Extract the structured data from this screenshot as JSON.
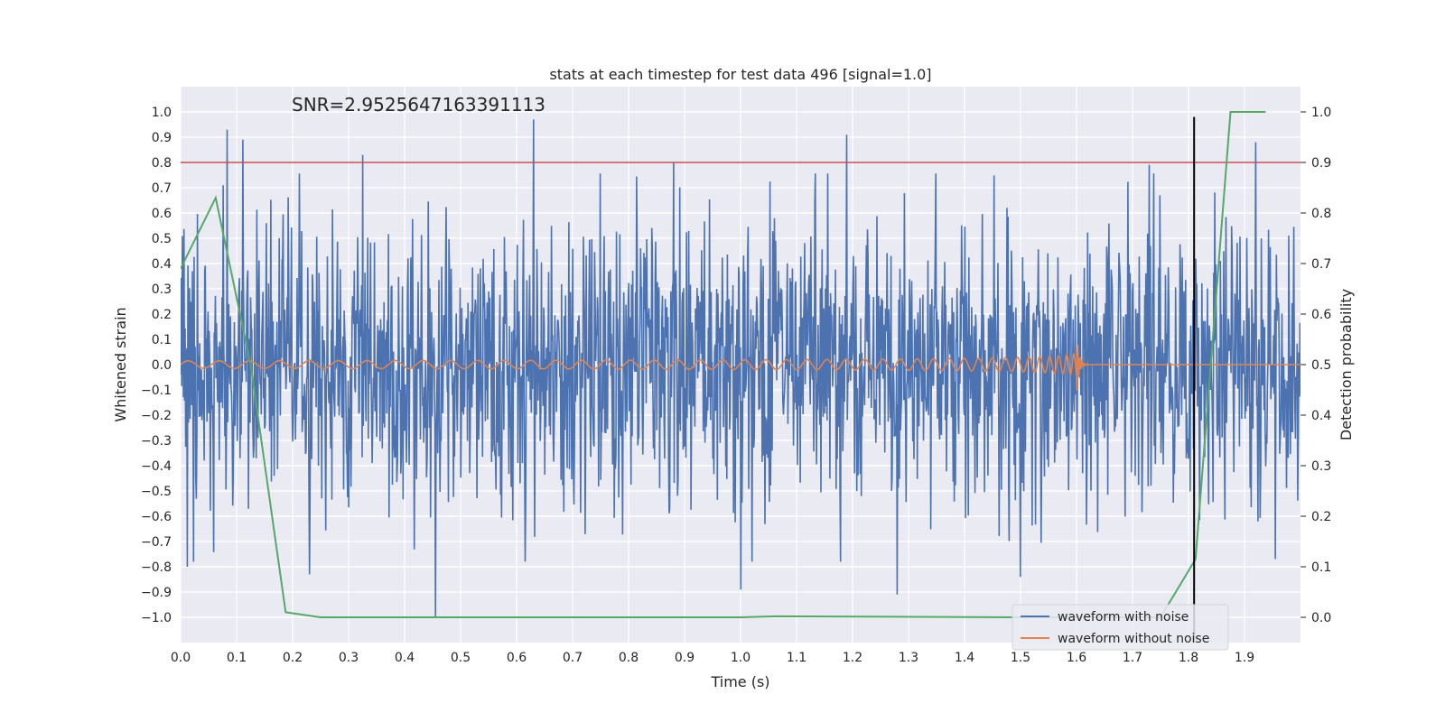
{
  "chart_data": {
    "type": "line",
    "title": "stats at each timestep for test data 496 [signal=1.0]",
    "annotation": "SNR=2.9525647163391113",
    "xlabel": "Time (s)",
    "ylabel_left": "Whitened strain",
    "ylabel_right": "Detection probability",
    "xlim": [
      0.0,
      2.0
    ],
    "ylim_left": [
      -1.1,
      1.1
    ],
    "ylim_right": [
      -0.05,
      1.05
    ],
    "xticks": [
      "0.0",
      "0.1",
      "0.2",
      "0.3",
      "0.4",
      "0.5",
      "0.6",
      "0.7",
      "0.8",
      "0.9",
      "1.0",
      "1.1",
      "1.2",
      "1.3",
      "1.4",
      "1.5",
      "1.6",
      "1.7",
      "1.8",
      "1.9"
    ],
    "yticks_left": [
      "1.0",
      "0.9",
      "0.8",
      "0.7",
      "0.6",
      "0.5",
      "0.4",
      "0.3",
      "0.2",
      "0.1",
      "0.0",
      "−0.1",
      "−0.2",
      "−0.3",
      "−0.4",
      "−0.5",
      "−0.6",
      "−0.7",
      "−0.8",
      "−0.9",
      "−1.0"
    ],
    "yticks_right": [
      "1.0",
      "0.9",
      "0.8",
      "0.7",
      "0.6",
      "0.5",
      "0.4",
      "0.3",
      "0.2",
      "0.1",
      "0.0"
    ],
    "grid": true,
    "legend_position": "lower-right",
    "threshold_line": {
      "axis": "right",
      "value": 0.9,
      "color": "#c44e52"
    },
    "vertical_marker": {
      "x": 1.81,
      "y_top_right": 0.99,
      "color": "#000000"
    },
    "series": [
      {
        "name": "waveform with noise",
        "axis": "left",
        "color": "#4c72b0",
        "style": "noise",
        "amplitude_range": [
          -1.0,
          0.97
        ],
        "peaks": [
          {
            "x": 0.083,
            "y": 0.93
          },
          {
            "x": 0.111,
            "y": 0.89
          },
          {
            "x": 0.325,
            "y": 0.83
          },
          {
            "x": 0.63,
            "y": 0.97
          },
          {
            "x": 0.88,
            "y": 0.8
          },
          {
            "x": 1.19,
            "y": 0.91
          },
          {
            "x": 1.73,
            "y": 0.79
          },
          {
            "x": 1.92,
            "y": 0.88
          },
          {
            "x": 0.455,
            "y": -1.0
          },
          {
            "x": 1.0,
            "y": -0.89
          },
          {
            "x": 1.28,
            "y": -0.91
          },
          {
            "x": 0.012,
            "y": -0.8
          },
          {
            "x": 0.23,
            "y": -0.83
          },
          {
            "x": 1.5,
            "y": -0.84
          }
        ]
      },
      {
        "name": "waveform without noise",
        "axis": "left",
        "color": "#dd8452",
        "style": "chirp",
        "merger_time": 1.6,
        "amplitude_start": 0.015,
        "amplitude_peak": 0.14
      },
      {
        "name": "",
        "axis": "right",
        "color": "#55a868",
        "style": "line",
        "x": [
          0.0,
          0.0625,
          0.125,
          0.1875,
          0.25,
          0.5,
          1.0,
          1.0625,
          1.5,
          1.75,
          1.8125,
          1.875,
          1.9375
        ],
        "values": [
          0.69,
          0.83,
          0.5,
          0.01,
          0.0,
          0.0,
          0.0,
          0.002,
          0.0,
          0.0,
          0.115,
          1.0,
          1.0
        ]
      }
    ]
  }
}
